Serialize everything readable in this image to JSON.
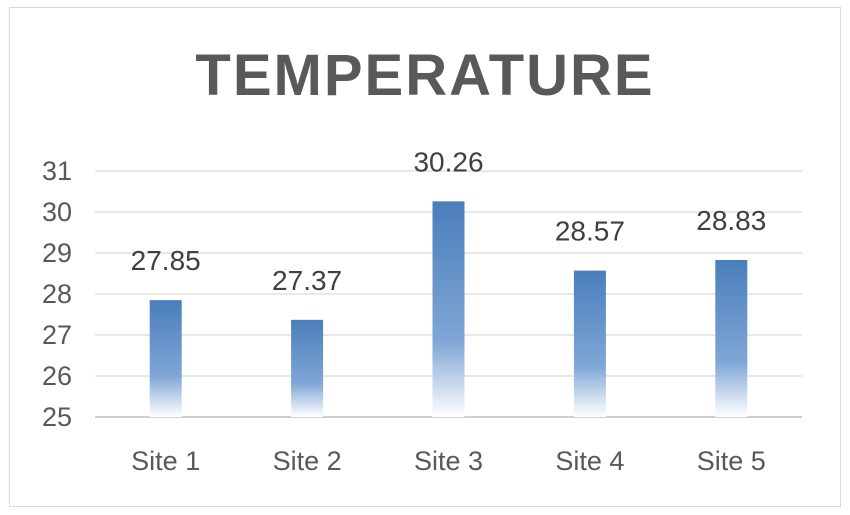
{
  "chart_data": {
    "type": "bar",
    "title": "TEMPERATURE",
    "categories": [
      "Site 1",
      "Site 2",
      "Site 3",
      "Site 4",
      "Site 5"
    ],
    "values": [
      27.85,
      27.37,
      30.26,
      28.57,
      28.83
    ],
    "data_labels": [
      "27.85",
      "27.37",
      "30.26",
      "28.57",
      "28.83"
    ],
    "ylim": [
      25,
      31
    ],
    "yticks": [
      25,
      26,
      27,
      28,
      29,
      30,
      31
    ],
    "grid": true,
    "legend": "none",
    "bar_color": "#4a7ebb",
    "grid_color": "#d9d9d9",
    "axis_color": "#bfbfbf",
    "text_color": "#595959"
  }
}
